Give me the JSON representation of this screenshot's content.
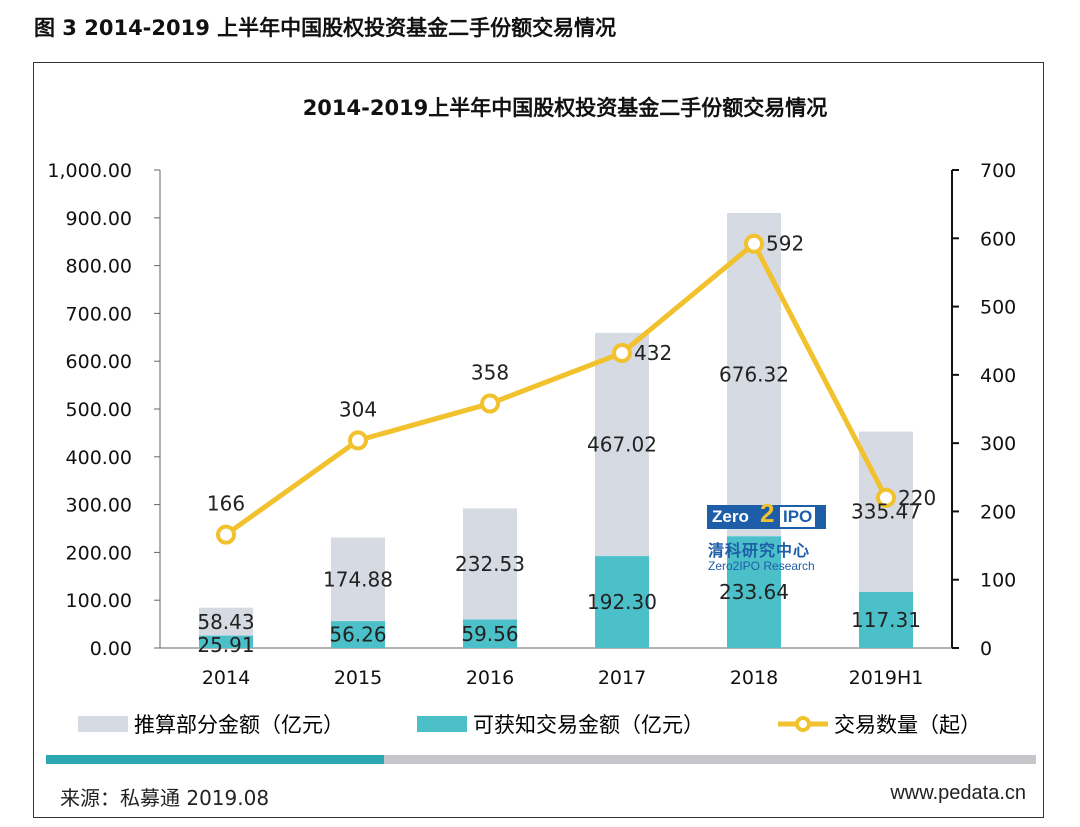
{
  "figure_caption": "图 3 2014-2019 上半年中国股权投资基金二手份额交易情况",
  "source_text": "来源：私募通 2019.08",
  "website": "www.pedata.cn",
  "logo": {
    "badge_left": "Zero",
    "badge_mid": "2",
    "badge_right": "IPO",
    "name_cn": "清科研究中心",
    "name_en": "Zero2IPO Research"
  },
  "colors": {
    "estimated": "#d6dae2",
    "known": "#4cc0c9",
    "line": "#f2c12e",
    "band_left": "#2ca8b5",
    "band_right": "#c4c6c9"
  },
  "chart_data": {
    "type": "bar",
    "stacked": true,
    "title": "2014-2019上半年中国股权投资基金二手份额交易情况",
    "categories": [
      "2014",
      "2015",
      "2016",
      "2017",
      "2018",
      "2019H1"
    ],
    "series": [
      {
        "name": "可获知交易金额（亿元）",
        "type": "bar",
        "axis": "left",
        "values": [
          25.91,
          56.26,
          59.56,
          192.3,
          233.64,
          117.31
        ],
        "labels": [
          "25.91",
          "56.26",
          "59.56",
          "192.30",
          "233.64",
          "117.31"
        ]
      },
      {
        "name": "推算部分金额（亿元）",
        "type": "bar",
        "axis": "left",
        "values": [
          58.43,
          174.88,
          232.53,
          467.02,
          676.32,
          335.47
        ],
        "labels": [
          "58.43",
          "174.88",
          "232.53",
          "467.02",
          "676.32",
          "335.47"
        ]
      },
      {
        "name": "交易数量（起）",
        "type": "line",
        "axis": "right",
        "values": [
          166,
          304,
          358,
          432,
          592,
          220
        ],
        "labels": [
          "166",
          "304",
          "358",
          "432",
          "592",
          "220"
        ]
      }
    ],
    "legend_order": [
      1,
      0,
      2
    ],
    "y_left": {
      "ylim": [
        0,
        1000
      ],
      "ticks": [
        0,
        100,
        200,
        300,
        400,
        500,
        600,
        700,
        800,
        900,
        1000
      ],
      "tick_labels": [
        "0.00",
        "100.00",
        "200.00",
        "300.00",
        "400.00",
        "500.00",
        "600.00",
        "700.00",
        "800.00",
        "900.00",
        "1,000.00"
      ]
    },
    "y_right": {
      "ylim": [
        0,
        700
      ],
      "ticks": [
        0,
        100,
        200,
        300,
        400,
        500,
        600,
        700
      ],
      "tick_labels": [
        "0",
        "100",
        "200",
        "300",
        "400",
        "500",
        "600",
        "700"
      ]
    },
    "grid": false,
    "legend_position": "bottom"
  }
}
